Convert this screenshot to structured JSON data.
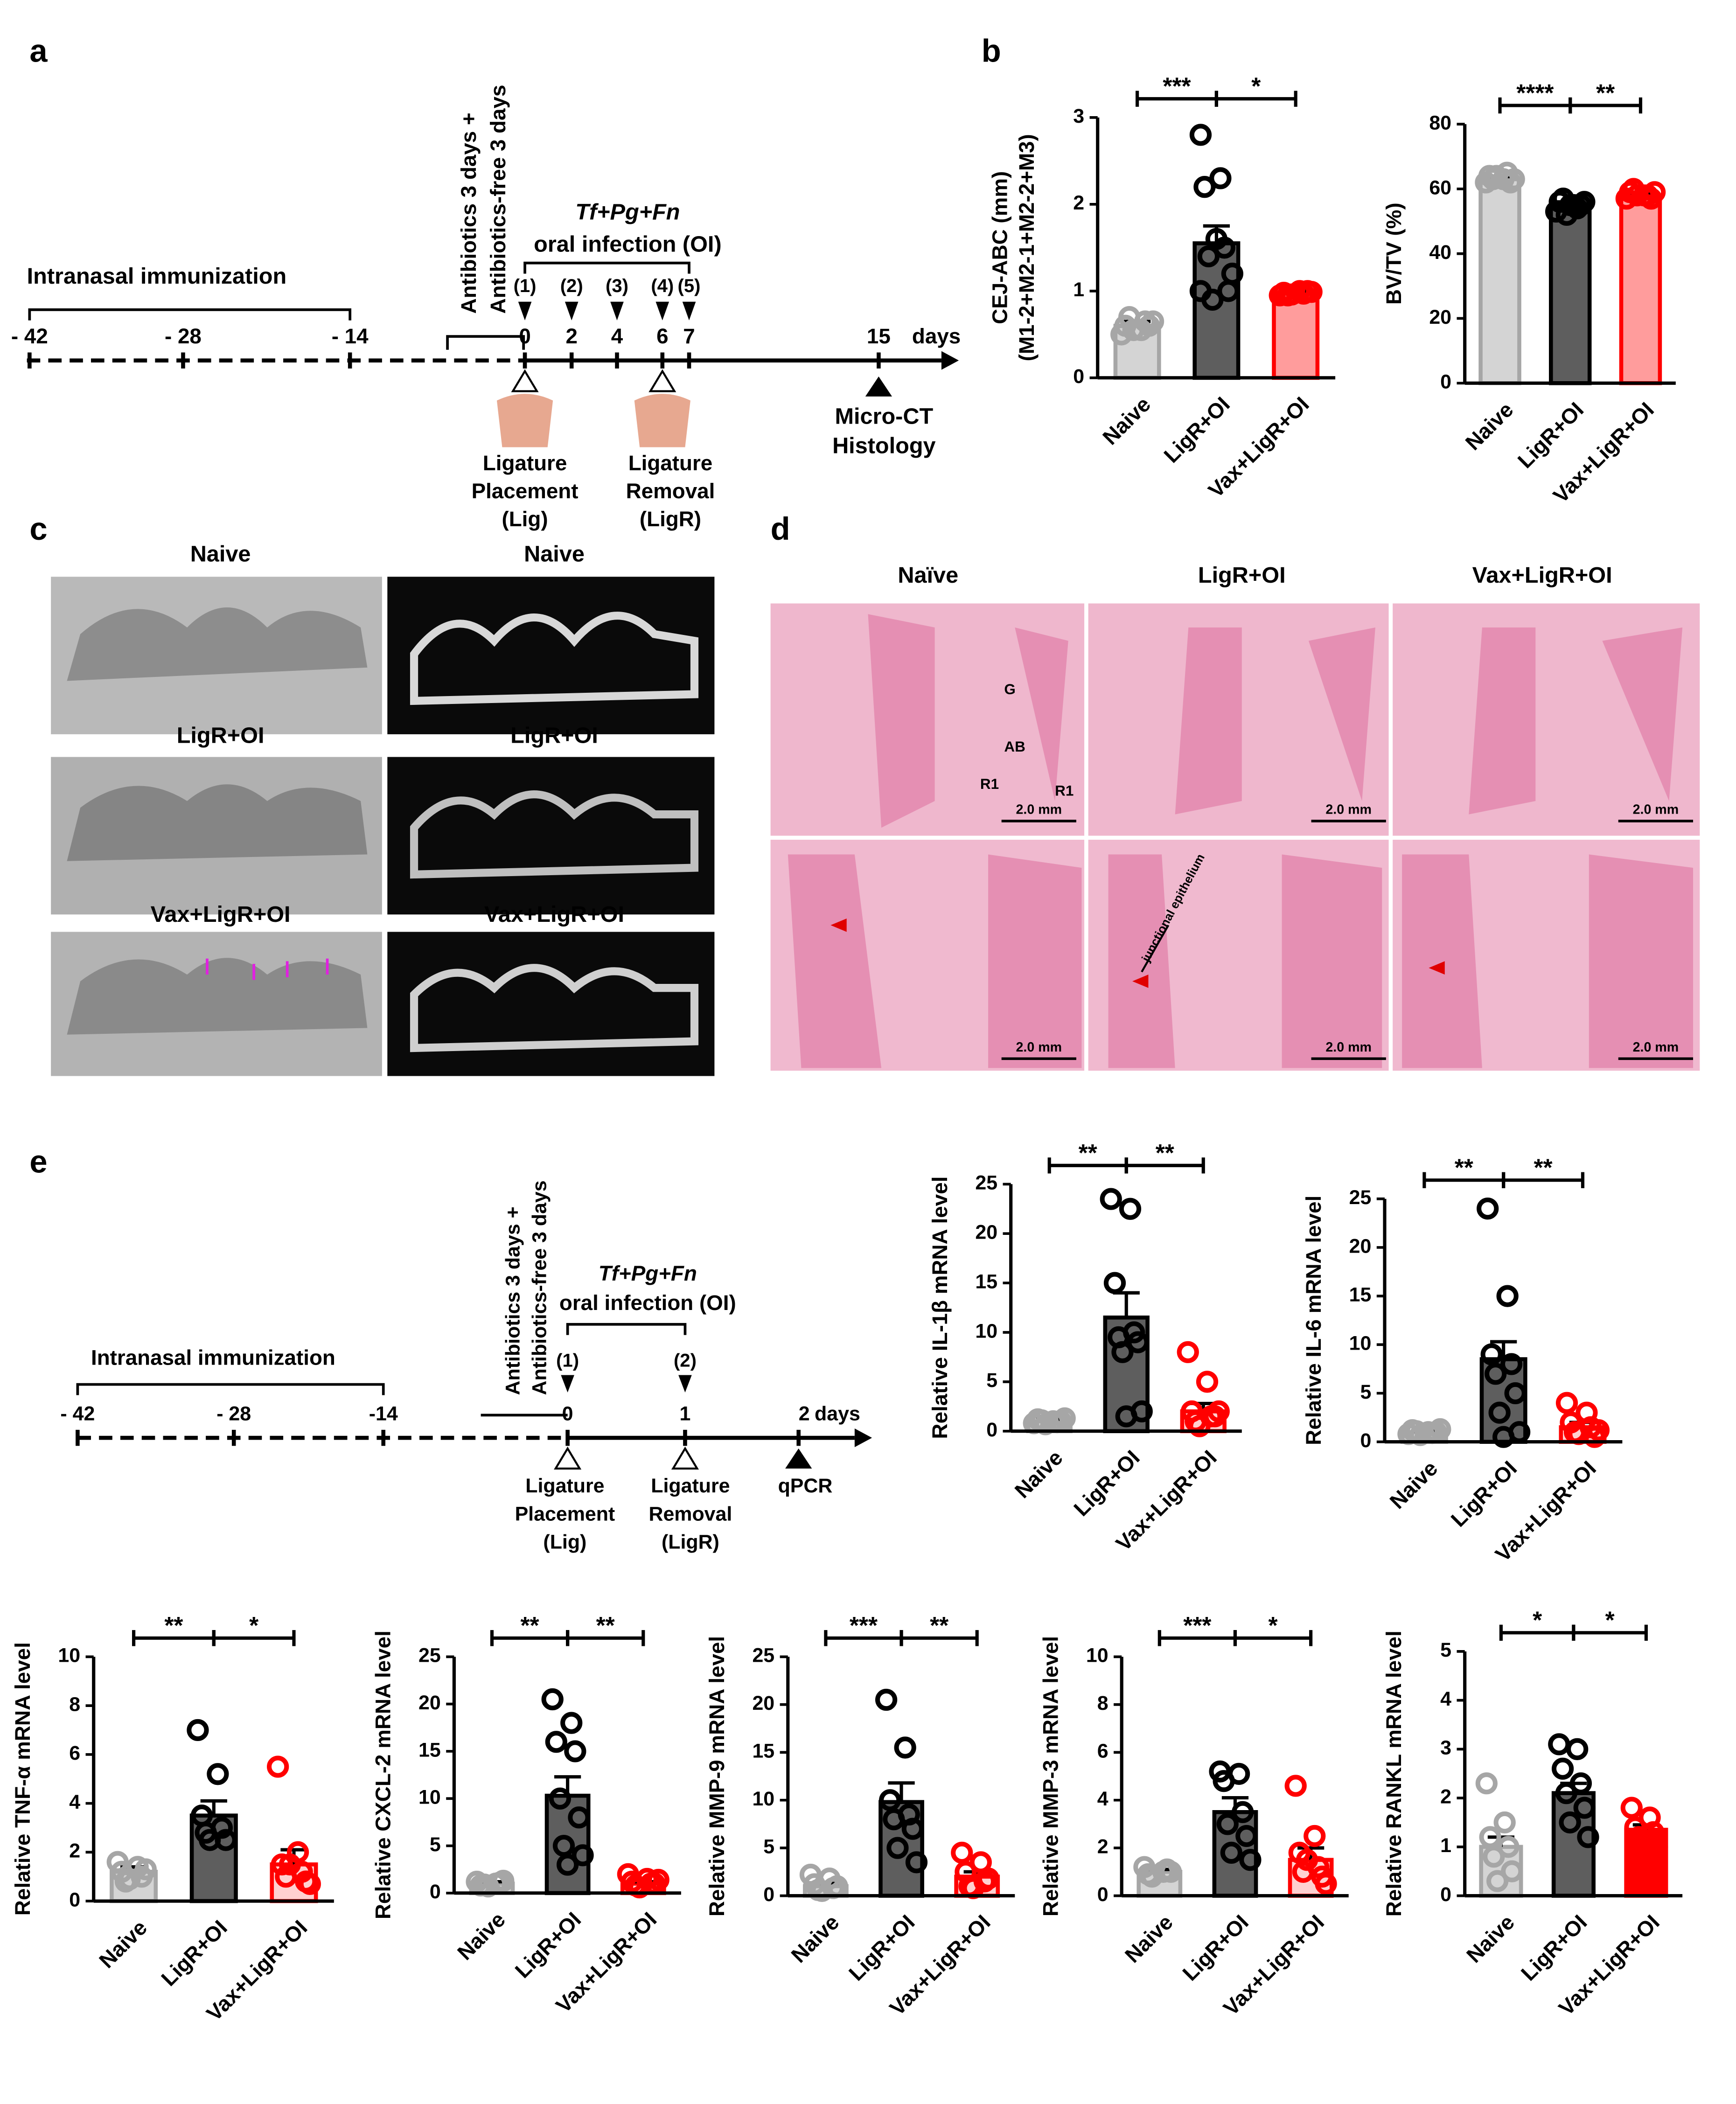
{
  "panel_labels": [
    "a",
    "b",
    "c",
    "d",
    "e"
  ],
  "timeline_a": {
    "immunization": "Intranasal immunization",
    "days": [
      "- 42",
      "- 28",
      "- 14",
      "0",
      "2",
      "4",
      "6",
      "7",
      "15"
    ],
    "unit": "days",
    "antibiotics": [
      "Antibiotics 3 days +",
      "Antibiotics-free 3 days"
    ],
    "infection": [
      "Tf+Pg+Fn",
      "oral infection (OI)"
    ],
    "doses": [
      "(1)",
      "(2)",
      "(3)",
      "(4)",
      "(5)"
    ],
    "ligature_placement": [
      "Ligature",
      "Placement",
      "(Lig)"
    ],
    "ligature_removal": [
      "Ligature",
      "Removal",
      "(LigR)"
    ],
    "endpoint": [
      "Micro-CT",
      "Histology"
    ]
  },
  "timeline_e": {
    "immunization": "Intranasal immunization",
    "days": [
      "- 42",
      "- 28",
      "-14",
      "0",
      "1",
      "2"
    ],
    "unit": "days",
    "antibiotics": [
      "Antibiotics 3 days +",
      "Antibiotics-free 3 days"
    ],
    "infection": [
      "Tf+Pg+Fn",
      "oral infection (OI)"
    ],
    "doses": [
      "(1)",
      "(2)"
    ],
    "ligature_placement": [
      "Ligature",
      "Placement",
      "(Lig)"
    ],
    "ligature_removal": [
      "Ligature",
      "Removal",
      "(LigR)"
    ],
    "endpoint": [
      "qPCR"
    ]
  },
  "microct": {
    "titles": [
      "Naive",
      "Naive",
      "LigR+OI",
      "LigR+OI",
      "Vax+LigR+OI",
      "Vax+LigR+OI"
    ]
  },
  "histology": {
    "columns": [
      "Naïve",
      "LigR+OI",
      "Vax+LigR+OI"
    ],
    "labels": [
      "G",
      "AB",
      "R1",
      "R1"
    ],
    "scale_bar": "2.0 mm",
    "annotation": "junctional epithelium"
  },
  "chart_data": [
    {
      "type": "bar",
      "ylabel": [
        "CEJ-ABC (mm)",
        "(M1-2+M2-1+M2-2+M3)"
      ],
      "categories": [
        "Naive",
        "LigR+OI",
        "Vax+LigR+OI"
      ],
      "values": [
        0.6,
        1.55,
        0.97
      ],
      "errors": [
        0.05,
        0.2,
        0.03
      ],
      "points": [
        [
          0.5,
          0.55,
          0.6,
          0.65,
          0.7,
          0.6,
          0.55,
          0.65
        ],
        [
          2.8,
          2.3,
          2.2,
          1.5,
          1.4,
          1.0,
          0.9,
          1.2,
          1.6,
          1.0
        ],
        [
          0.95,
          1.0,
          0.98,
          0.97,
          0.95,
          1.0,
          0.96,
          0.99
        ]
      ],
      "colors": [
        "#d4d4d4",
        "#5e5e5e",
        "#ff9c9c"
      ],
      "point_colors": [
        "#a6a6a6",
        "#000000",
        "#ff0000"
      ],
      "ylim": [
        0,
        3
      ],
      "yticks": [
        0,
        1,
        2,
        3
      ],
      "significance": [
        "***",
        "*"
      ]
    },
    {
      "type": "bar",
      "ylabel": [
        "BV/TV (%)"
      ],
      "categories": [
        "Naive",
        "LigR+OI",
        "Vax+LigR+OI"
      ],
      "values": [
        63,
        55,
        58
      ],
      "errors": [
        0.8,
        1,
        0.8
      ],
      "points": [
        [
          62,
          63,
          64,
          65,
          63,
          62,
          64,
          63
        ],
        [
          53,
          55,
          56,
          54,
          57,
          55,
          52,
          56,
          55
        ],
        [
          57,
          58,
          59,
          58,
          60,
          57,
          58,
          59
        ]
      ],
      "colors": [
        "#d4d4d4",
        "#5e5e5e",
        "#ff9c9c"
      ],
      "point_colors": [
        "#a6a6a6",
        "#000000",
        "#ff0000"
      ],
      "ylim": [
        0,
        80
      ],
      "yticks": [
        0,
        20,
        40,
        60,
        80
      ],
      "significance": [
        "****",
        "**"
      ]
    },
    {
      "type": "bar",
      "ylabel": [
        "Relative IL-1β mRNA level"
      ],
      "categories": [
        "Naive",
        "LigR+OI",
        "Vax+LigR+OI"
      ],
      "values": [
        1,
        11.5,
        2
      ],
      "errors": [
        0.2,
        2.5,
        0.8
      ],
      "points": [
        [
          0.8,
          1,
          1.2,
          0.9,
          1.1,
          1,
          0.7,
          1.3
        ],
        [
          23.5,
          22.5,
          15,
          10,
          9.5,
          9,
          8,
          2,
          1.5
        ],
        [
          8,
          5,
          2,
          1.5,
          1,
          1.5,
          0.5,
          2
        ]
      ],
      "colors": [
        "#d4d4d4",
        "#5e5e5e",
        "#ffd0d0"
      ],
      "point_colors": [
        "#a6a6a6",
        "#000000",
        "#ff0000"
      ],
      "ylim": [
        0,
        25
      ],
      "yticks": [
        0,
        5,
        10,
        15,
        20,
        25
      ],
      "significance": [
        "**",
        "**"
      ]
    },
    {
      "type": "bar",
      "ylabel": [
        "Relative IL-6 mRNA level"
      ],
      "categories": [
        "Naive",
        "LigR+OI",
        "Vax+LigR+OI"
      ],
      "values": [
        1,
        8.5,
        1.5
      ],
      "errors": [
        0.1,
        1.8,
        0.5
      ],
      "points": [
        [
          0.8,
          1,
          1.2,
          0.9,
          1.1,
          1,
          0.7,
          1.3
        ],
        [
          24,
          15,
          9,
          8,
          7,
          5,
          3,
          1,
          0.5
        ],
        [
          4,
          3,
          2,
          1.5,
          1,
          0.5,
          0.8,
          1.2
        ]
      ],
      "colors": [
        "#d4d4d4",
        "#5e5e5e",
        "#ffd0d0"
      ],
      "point_colors": [
        "#a6a6a6",
        "#000000",
        "#ff0000"
      ],
      "ylim": [
        0,
        25
      ],
      "yticks": [
        0,
        5,
        10,
        15,
        20,
        25
      ],
      "significance": [
        "**",
        "**"
      ]
    },
    {
      "type": "bar",
      "ylabel": [
        "Relative TNF-α mRNA level"
      ],
      "categories": [
        "Naive",
        "LigR+OI",
        "Vax+LigR+OI"
      ],
      "values": [
        1.2,
        3.5,
        1.5
      ],
      "errors": [
        0.2,
        0.6,
        0.6
      ],
      "points": [
        [
          1.6,
          1.4,
          1.2,
          1,
          0.8,
          1.3,
          0.9
        ],
        [
          7,
          5.2,
          3.5,
          3,
          2.8,
          2.5,
          2.5
        ],
        [
          5.5,
          2,
          1.5,
          1.2,
          1,
          0.8,
          1.5,
          0.7
        ]
      ],
      "colors": [
        "#d4d4d4",
        "#5e5e5e",
        "#ffd0d0"
      ],
      "point_colors": [
        "#a6a6a6",
        "#000000",
        "#ff0000"
      ],
      "ylim": [
        0,
        10
      ],
      "yticks": [
        0,
        2,
        4,
        6,
        8,
        10
      ],
      "significance": [
        "**",
        "*"
      ]
    },
    {
      "type": "bar",
      "ylabel": [
        "Relative CXCL-2 mRNA level"
      ],
      "categories": [
        "Naive",
        "LigR+OI",
        "Vax+LigR+OI"
      ],
      "values": [
        1,
        10.3,
        1
      ],
      "errors": [
        0.2,
        2,
        0.2
      ],
      "points": [
        [
          1.2,
          1,
          0.8,
          1.1,
          0.9,
          1.3,
          0.7
        ],
        [
          20.5,
          18,
          16,
          15,
          10,
          8,
          5,
          4,
          3
        ],
        [
          2,
          1.5,
          1.2,
          1,
          0.8,
          1,
          0.6,
          1.4
        ]
      ],
      "colors": [
        "#d4d4d4",
        "#5e5e5e",
        "#ffd0d0"
      ],
      "point_colors": [
        "#a6a6a6",
        "#000000",
        "#ff0000"
      ],
      "ylim": [
        0,
        25
      ],
      "yticks": [
        0,
        5,
        10,
        15,
        20,
        25
      ],
      "significance": [
        "**",
        "**"
      ]
    },
    {
      "type": "bar",
      "ylabel": [
        "Relative MMP-9 mRNA level"
      ],
      "categories": [
        "Naive",
        "LigR+OI",
        "Vax+LigR+OI"
      ],
      "values": [
        1,
        9.8,
        2
      ],
      "errors": [
        0.3,
        2,
        0.5
      ],
      "points": [
        [
          2.2,
          1.8,
          1.2,
          0.8,
          0.6,
          1,
          0.5
        ],
        [
          20.5,
          15.5,
          10,
          8.5,
          8,
          7,
          5,
          3.5
        ],
        [
          4.5,
          3.5,
          2.5,
          1.5,
          1,
          1.8,
          0.8
        ]
      ],
      "colors": [
        "#d4d4d4",
        "#5e5e5e",
        "#ffd0d0"
      ],
      "point_colors": [
        "#a6a6a6",
        "#000000",
        "#ff0000"
      ],
      "ylim": [
        0,
        25
      ],
      "yticks": [
        0,
        5,
        10,
        15,
        20,
        25
      ],
      "significance": [
        "***",
        "**"
      ]
    },
    {
      "type": "bar",
      "ylabel": [
        "Relative MMP-3 mRNA level"
      ],
      "categories": [
        "Naive",
        "LigR+OI",
        "Vax+LigR+OI"
      ],
      "values": [
        1,
        3.5,
        1.5
      ],
      "errors": [
        0.1,
        0.6,
        0.5
      ],
      "points": [
        [
          1.2,
          1,
          0.9,
          1.1,
          0.8,
          1
        ],
        [
          5.2,
          5.1,
          4.8,
          3.5,
          3,
          2.5,
          1.8,
          1.5
        ],
        [
          4.6,
          2.5,
          1.8,
          1.2,
          1,
          0.8,
          1.5,
          0.5
        ]
      ],
      "colors": [
        "#d4d4d4",
        "#5e5e5e",
        "#ffd0d0"
      ],
      "point_colors": [
        "#a6a6a6",
        "#000000",
        "#ff0000"
      ],
      "ylim": [
        0,
        10
      ],
      "yticks": [
        0,
        2,
        4,
        6,
        8,
        10
      ],
      "significance": [
        "***",
        "*"
      ]
    },
    {
      "type": "bar",
      "ylabel": [
        "Relative RANKL mRNA level"
      ],
      "categories": [
        "Naive",
        "LigR+OI",
        "Vax+LigR+OI"
      ],
      "values": [
        1,
        2.1,
        1.35
      ],
      "errors": [
        0.2,
        0.2,
        0.1
      ],
      "points": [
        [
          2.3,
          1.5,
          1.2,
          1,
          0.8,
          0.5,
          0.3
        ],
        [
          3.1,
          3,
          2.6,
          2.3,
          2.1,
          1.8,
          1.5,
          1.2
        ],
        [
          1.8,
          1.6,
          1.4,
          1.3,
          1.2,
          1.0,
          0.9
        ]
      ],
      "colors": [
        "#d4d4d4",
        "#5e5e5e",
        "#ff0000"
      ],
      "point_colors": [
        "#a6a6a6",
        "#000000",
        "#ff0000"
      ],
      "ylim": [
        0,
        5
      ],
      "yticks": [
        0,
        1,
        2,
        3,
        4,
        5
      ],
      "significance": [
        "*",
        "*"
      ]
    }
  ]
}
